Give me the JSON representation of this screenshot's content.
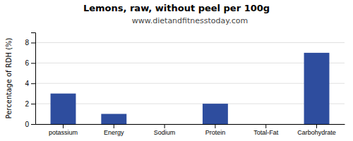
{
  "chart_data": {
    "type": "bar",
    "title": "Lemons, raw, without peel per 100g",
    "subtitle": "www.dietandfitnesstoday.com",
    "ylabel": "Percentage of RDH (%)",
    "categories": [
      "potassium",
      "Energy",
      "Sodium",
      "Protein",
      "Total-Fat",
      "Carbohydrate"
    ],
    "values": [
      3.0,
      1.0,
      0.0,
      2.0,
      0.0,
      7.0
    ],
    "color": "#2e4d9e",
    "ylim": [
      0,
      9
    ],
    "yticks": [
      0,
      2,
      4,
      6,
      8
    ],
    "grid": true
  }
}
